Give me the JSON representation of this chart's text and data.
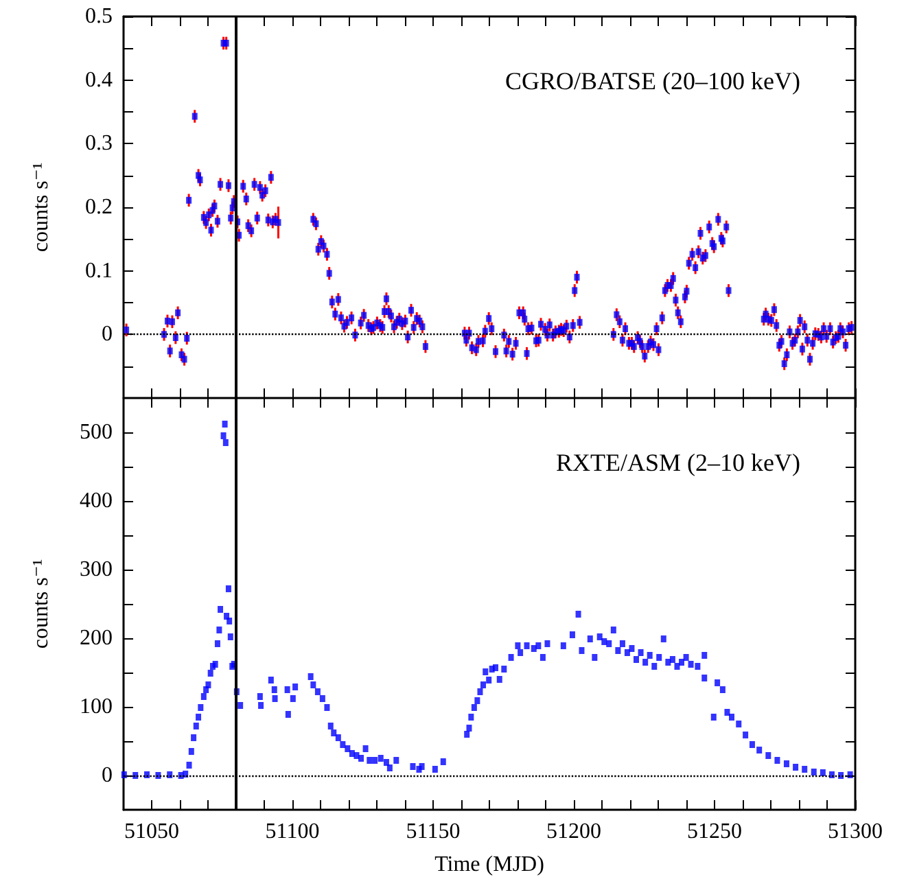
{
  "chart_data": [
    {
      "type": "scatter",
      "annotations": [
        "CGRO/BATSE (20–100 keV)"
      ],
      "ylabel": "counts s⁻¹",
      "color": "#0000ff",
      "marker": "square",
      "grid": false,
      "tick_labels": "y",
      "xlim": [
        51040,
        51300
      ],
      "xticks": [
        51050,
        {
          "value": 51060,
          "label": null
        },
        {
          "value": 51070,
          "label": null
        },
        {
          "value": 51080,
          "label": null
        },
        {
          "value": 51090,
          "label": null
        },
        51100,
        {
          "value": 51110,
          "label": null
        },
        {
          "value": 51120,
          "label": null
        },
        {
          "value": 51130,
          "label": null
        },
        {
          "value": 51140,
          "label": null
        },
        51150,
        {
          "value": 51160,
          "label": null
        },
        {
          "value": 51170,
          "label": null
        },
        {
          "value": 51180,
          "label": null
        },
        {
          "value": 51190,
          "label": null
        },
        51200,
        {
          "value": 51210,
          "label": null
        },
        {
          "value": 51220,
          "label": null
        },
        {
          "value": 51230,
          "label": null
        },
        {
          "value": 51240,
          "label": null
        },
        51250,
        {
          "value": 51260,
          "label": null
        },
        {
          "value": 51270,
          "label": null
        },
        {
          "value": 51280,
          "label": null
        },
        {
          "value": 51290,
          "label": null
        },
        51300
      ],
      "ylim": [
        -0.1,
        0.5
      ],
      "yticks": [
        {
          "value": -0.05,
          "label": null
        },
        0,
        {
          "value": 0.05,
          "label": null
        },
        0.1,
        {
          "value": 0.15,
          "label": null
        },
        0.2,
        {
          "value": 0.25,
          "label": null
        },
        0.3,
        {
          "value": 0.35,
          "label": null
        },
        0.4,
        {
          "value": 0.45,
          "label": null
        },
        0.5
      ],
      "ref_lines": [
        {
          "axis": "x",
          "value": 51080,
          "line_style": "solid"
        },
        {
          "axis": "y",
          "value": 0,
          "line_style": "dotted"
        }
      ],
      "x": [
        51041,
        51054.4,
        51055.6,
        51056.5,
        51057.3,
        51058.5,
        51059.3,
        51060.6,
        51061.6,
        51062.5,
        51063.2,
        51065.3,
        51066.6,
        51067.2,
        51068.5,
        51069.3,
        51070.3,
        51071.1,
        51071.6,
        51072.3,
        51073.4,
        51074.4,
        51075.5,
        51076.5,
        51077.3,
        51078.1,
        51078.7,
        51079.2,
        51080.5,
        51081,
        51082.5,
        51083.6,
        51084.3,
        51085.4,
        51086.5,
        51087.5,
        51088.5,
        51089.3,
        51090.4,
        51091.4,
        51092.4,
        51093,
        51094,
        51095,
        51107.4,
        51108.4,
        51109.2,
        51110.2,
        51111.1,
        51112.3,
        51113.1,
        51114.1,
        51115.2,
        51116.3,
        51117.3,
        51118.4,
        51119.4,
        51121,
        51122.3,
        51124.3,
        51125.4,
        51127,
        51128,
        51128.8,
        51130.1,
        51131.2,
        51132,
        51132.7,
        51133.4,
        51134.2,
        51135.1,
        51136.1,
        51137.1,
        51138,
        51139,
        51140.1,
        51141,
        51142.2,
        51143.1,
        51144.2,
        51145.2,
        51146.2,
        51147.3,
        51161.2,
        51161.8,
        51162.8,
        51163.8,
        51165.3,
        51166.1,
        51167.7,
        51168.5,
        51169.8,
        51170.8,
        51172.2,
        51175.2,
        51176,
        51176.9,
        51178.2,
        51179.4,
        51180.6,
        51182,
        51182.5,
        51183.3,
        51183.8,
        51185,
        51186.6,
        51187.5,
        51188.3,
        51189.8,
        51190.6,
        51191.4,
        51192.6,
        51193.5,
        51194.7,
        51195.5,
        51196.4,
        51197.4,
        51198.5,
        51199.7,
        51200.3,
        51201.1,
        51202.1,
        51214.1,
        51215.2,
        51216.3,
        51217.3,
        51218.3,
        51219.6,
        51220.6,
        51221.4,
        51222.7,
        51223.5,
        51224.3,
        51225.2,
        51226.4,
        51227.3,
        51228.3,
        51229.4,
        51230.1,
        51231.4,
        51232.4,
        51233.3,
        51234.5,
        51235.3,
        51236.2,
        51237,
        51238,
        51239.5,
        51240.1,
        51240.9,
        51242.1,
        51243.2,
        51244.3,
        51245,
        51245.8,
        51246.8,
        51248.1,
        51249.2,
        51249.8,
        51251.3,
        51252.4,
        51252.9,
        51254.2,
        51255,
        51267.5,
        51268.2,
        51269.1,
        51270.2,
        51271.2,
        51272,
        51273,
        51273.8,
        51274.8,
        51275.7,
        51276.7,
        51277.7,
        51278.6,
        51279.6,
        51280.4,
        51281.2,
        51282,
        51283,
        51283.9,
        51284.9,
        51285.8,
        51286.9,
        51287.9,
        51288.8,
        51289.8,
        51291.1,
        51292.1,
        51293.1,
        51294,
        51294.7,
        51295.6,
        51296.6,
        51297.7,
        51298.7
      ],
      "values": [
        0.007,
        0,
        0.021,
        -0.026,
        0.02,
        -0.005,
        0.034,
        -0.032,
        -0.039,
        -0.006,
        0.211,
        0.343,
        0.25,
        0.243,
        0.184,
        0.176,
        0.188,
        0.164,
        0.195,
        0.202,
        0.178,
        0.236,
        0.458,
        0.458,
        0.234,
        0.183,
        0.199,
        0.209,
        0.177,
        0.156,
        0.233,
        0.213,
        0.171,
        0.163,
        0.236,
        0.183,
        0.231,
        0.219,
        0.226,
        0.18,
        0.247,
        0.177,
        0.181,
        0.176,
        0.181,
        0.174,
        0.134,
        0.146,
        0.139,
        0.126,
        0.096,
        0.051,
        0.032,
        0.055,
        0.026,
        0.013,
        0.019,
        0.026,
        -0.001,
        0.018,
        0.03,
        0.014,
        0.009,
        0.011,
        0.018,
        0.014,
        0.011,
        0.036,
        0.056,
        0.036,
        0.029,
        0.012,
        0.019,
        0.024,
        0.017,
        0.021,
        -0.004,
        0.038,
        0.011,
        0.025,
        0.021,
        0.012,
        -0.019,
        0.002,
        -0.009,
        0.002,
        -0.021,
        -0.024,
        -0.011,
        -0.01,
        0.005,
        0.025,
        0.009,
        -0.027,
        -0.001,
        -0.026,
        -0.011,
        -0.031,
        -0.014,
        0.034,
        0.034,
        0.024,
        -0.03,
        0.009,
        0.01,
        -0.01,
        -0.009,
        0.016,
        0.008,
        -0.001,
        0.015,
        -0.001,
        0.004,
        0.005,
        0.008,
        0.006,
        0.013,
        -0.004,
        0.014,
        0.069,
        0.09,
        0.019,
        0,
        0.031,
        0.02,
        -0.009,
        0.009,
        -0.014,
        -0.014,
        -0.019,
        -0.005,
        -0.011,
        -0.019,
        -0.034,
        -0.019,
        -0.012,
        -0.016,
        0.009,
        -0.024,
        0.026,
        0.069,
        0.077,
        0.077,
        0.088,
        0.054,
        0.034,
        0.02,
        0.059,
        0.068,
        0.112,
        0.126,
        0.105,
        0.13,
        0.159,
        0.12,
        0.124,
        0.169,
        0.143,
        0.138,
        0.181,
        0.151,
        0.147,
        0.169,
        0.069,
        0.024,
        0.032,
        0.024,
        0.022,
        0.039,
        0.014,
        -0.017,
        -0.011,
        -0.046,
        -0.032,
        0.004,
        -0.014,
        -0.009,
        0.004,
        0.022,
        -0.023,
        0.012,
        -0.009,
        -0.039,
        -0.014,
        0.001,
        0,
        -0.004,
        0.009,
        -0.003,
        0.009,
        -0.012,
        -0.005,
        -0.003,
        0.009,
        0.004,
        -0.017,
        0.009,
        0.011
      ],
      "errors": [
        0.01,
        0.01,
        0.01,
        0.01,
        0.01,
        0.01,
        0.01,
        0.01,
        0.01,
        0.01,
        0.01,
        0.01,
        0.01,
        0.01,
        0.01,
        0.01,
        0.01,
        0.01,
        0.01,
        0.01,
        0.01,
        0.01,
        0.01,
        0.01,
        0.01,
        0.01,
        0.01,
        0.01,
        0.01,
        0.01,
        0.01,
        0.01,
        0.01,
        0.01,
        0.01,
        0.01,
        0.01,
        0.01,
        0.01,
        0.01,
        0.01,
        0.01,
        0.01,
        0.025,
        0.01,
        0.01,
        0.01,
        0.01,
        0.01,
        0.01,
        0.01,
        0.01,
        0.01,
        0.01,
        0.01,
        0.01,
        0.01,
        0.01,
        0.01,
        0.01,
        0.01,
        0.01,
        0.01,
        0.01,
        0.01,
        0.01,
        0.01,
        0.01,
        0.01,
        0.01,
        0.01,
        0.01,
        0.01,
        0.01,
        0.01,
        0.01,
        0.01,
        0.01,
        0.01,
        0.01,
        0.01,
        0.01,
        0.01,
        0.01,
        0.01,
        0.01,
        0.01,
        0.01,
        0.01,
        0.01,
        0.01,
        0.01,
        0.01,
        0.01,
        0.01,
        0.01,
        0.01,
        0.01,
        0.01,
        0.01,
        0.01,
        0.01,
        0.01,
        0.01,
        0.01,
        0.01,
        0.01,
        0.01,
        0.01,
        0.01,
        0.01,
        0.01,
        0.01,
        0.01,
        0.01,
        0.01,
        0.01,
        0.01,
        0.01,
        0.01,
        0.01,
        0.01,
        0.01,
        0.01,
        0.01,
        0.01,
        0.01,
        0.01,
        0.01,
        0.01,
        0.01,
        0.01,
        0.01,
        0.01,
        0.01,
        0.01,
        0.01,
        0.01,
        0.01,
        0.01,
        0.01,
        0.01,
        0.01,
        0.01,
        0.01,
        0.01,
        0.01,
        0.01,
        0.01,
        0.01,
        0.01,
        0.01,
        0.01,
        0.01,
        0.01,
        0.01,
        0.01,
        0.01,
        0.01,
        0.01,
        0.01,
        0.01,
        0.01,
        0.01,
        0.01,
        0.01,
        0.01,
        0.01,
        0.01,
        0.01,
        0.01,
        0.01,
        0.01,
        0.01,
        0.01,
        0.01,
        0.01,
        0.01,
        0.01,
        0.01,
        0.01,
        0.01,
        0.01,
        0.01,
        0.01,
        0.01,
        0.01,
        0.01,
        0.01,
        0.01,
        0.01,
        0.01,
        0.01,
        0.01,
        0.01,
        0.01,
        0.01,
        0.01
      ]
    },
    {
      "type": "scatter",
      "annotations": [
        "RXTE/ASM (2–10 keV)"
      ],
      "xlabel": "Time (MJD)",
      "ylabel": "counts s⁻¹",
      "color": "#0000ff",
      "marker": "square",
      "grid": false,
      "xlim": [
        51040,
        51300
      ],
      "xticks": [
        51050,
        {
          "value": 51060,
          "label": null
        },
        {
          "value": 51070,
          "label": null
        },
        {
          "value": 51080,
          "label": null
        },
        {
          "value": 51090,
          "label": null
        },
        51100,
        {
          "value": 51110,
          "label": null
        },
        {
          "value": 51120,
          "label": null
        },
        {
          "value": 51130,
          "label": null
        },
        {
          "value": 51140,
          "label": null
        },
        51150,
        {
          "value": 51160,
          "label": null
        },
        {
          "value": 51170,
          "label": null
        },
        {
          "value": 51180,
          "label": null
        },
        {
          "value": 51190,
          "label": null
        },
        51200,
        {
          "value": 51210,
          "label": null
        },
        {
          "value": 51220,
          "label": null
        },
        {
          "value": 51230,
          "label": null
        },
        {
          "value": 51240,
          "label": null
        },
        51250,
        {
          "value": 51260,
          "label": null
        },
        {
          "value": 51270,
          "label": null
        },
        {
          "value": 51280,
          "label": null
        },
        {
          "value": 51290,
          "label": null
        },
        51300
      ],
      "ylim": [
        -50,
        550
      ],
      "yticks": [
        0,
        {
          "value": 50,
          "label": null
        },
        100,
        {
          "value": 150,
          "label": null
        },
        200,
        {
          "value": 250,
          "label": null
        },
        300,
        {
          "value": 350,
          "label": null
        },
        400,
        {
          "value": 450,
          "label": null
        },
        500
      ],
      "ref_lines": [
        {
          "axis": "x",
          "value": 51080,
          "line_style": "solid"
        },
        {
          "axis": "y",
          "value": 0,
          "line_style": "dotted"
        }
      ],
      "x": [
        51040.2,
        51044.2,
        51048.3,
        51052.3,
        51056.4,
        51060.4,
        51062,
        51063.3,
        51064.1,
        51064.9,
        51065.8,
        51066.6,
        51067.4,
        51068.5,
        51069.3,
        51070.1,
        51070.9,
        51071.7,
        51072.6,
        51073.4,
        51074,
        51074.4,
        51075.5,
        51076,
        51076.3,
        51076.6,
        51077.3,
        51077.6,
        51078,
        51078.6,
        51079.2,
        51080.2,
        51081.5,
        51088.5,
        51088.8,
        51092.4,
        51093.6,
        51093.8,
        51098.2,
        51098.5,
        51100.2,
        51101,
        51106.5,
        51107.4,
        51109,
        51110.7,
        51112.3,
        51113.6,
        51114.7,
        51116.3,
        51117.9,
        51119.6,
        51121.2,
        51122.8,
        51124.4,
        51126,
        51127.4,
        51129.3,
        51131.4,
        51133.4,
        51134.6,
        51136.9,
        51142.8,
        51145,
        51146,
        51150.7,
        51153.6,
        51162,
        51162.8,
        51163.5,
        51164.6,
        51165.7,
        51166.7,
        51167.8,
        51168.6,
        51169.8,
        51170.9,
        51172.2,
        51173.6,
        51175.2,
        51177.7,
        51180.1,
        51181,
        51183.3,
        51185.8,
        51187.4,
        51189,
        51190.6,
        51196.3,
        51199.5,
        51201.6,
        51202.8,
        51205.8,
        51207.4,
        51209.2,
        51210.8,
        51212.5,
        51214.1,
        51215.7,
        51217.3,
        51219,
        51220.6,
        51222.2,
        51223.8,
        51225.4,
        51227,
        51228.6,
        51230.3,
        51231.9,
        51233.5,
        51235.1,
        51236.7,
        51238.3,
        51239.9,
        51241.6,
        51244,
        51246.4,
        51246.4,
        51249.7,
        51251,
        51252.9,
        51254.5,
        51256.1,
        51258.6,
        51261,
        51263.4,
        51265.9,
        51269.1,
        51272.3,
        51275.6,
        51278.8,
        51282,
        51285.3,
        51288.5,
        51291.7,
        51294.9,
        51298.2
      ],
      "values": [
        1,
        0,
        1,
        0,
        1,
        0,
        2,
        15,
        35,
        55,
        72,
        85,
        99,
        115,
        125,
        132,
        149,
        159,
        162,
        192,
        212,
        242,
        495,
        512,
        485,
        232,
        272,
        225,
        202,
        159,
        162,
        122,
        102,
        115,
        102,
        139,
        125,
        112,
        125,
        89,
        112,
        129,
        144,
        132,
        122,
        112,
        99,
        72,
        62,
        55,
        45,
        39,
        32,
        29,
        25,
        39,
        22,
        22,
        25,
        19,
        11,
        22,
        13,
        9,
        13,
        9,
        20,
        60,
        69,
        85,
        99,
        109,
        122,
        132,
        151,
        139,
        155,
        157,
        140,
        155,
        172,
        189,
        179,
        189,
        185,
        189,
        172,
        192,
        189,
        205,
        235,
        182,
        199,
        172,
        202,
        195,
        192,
        212,
        182,
        192,
        179,
        185,
        169,
        179,
        165,
        175,
        159,
        172,
        199,
        165,
        169,
        159,
        165,
        172,
        162,
        159,
        175,
        142,
        85,
        135,
        125,
        92,
        85,
        75,
        59,
        45,
        37,
        29,
        22,
        17,
        12,
        9,
        5,
        4,
        1,
        0,
        1
      ]
    }
  ]
}
